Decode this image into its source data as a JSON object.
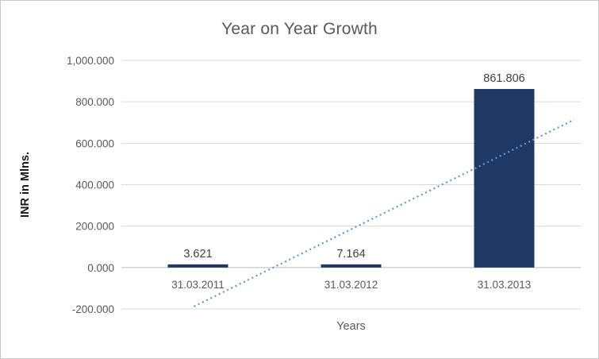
{
  "window": {
    "background": "#FFFFFF",
    "border_color": "#C9C9C9"
  },
  "chart_data": {
    "type": "bar",
    "title": "Year on Year Growth",
    "xlabel": "Years",
    "ylabel": "INR in Mlns.",
    "categories": [
      "31.03.2011",
      "31.03.2012",
      "31.03.2013"
    ],
    "values": [
      3.621,
      7.164,
      861.806
    ],
    "data_labels": [
      "3.621",
      "7.164",
      "861.806"
    ],
    "ylim": [
      -200,
      1000
    ],
    "yticks": [
      {
        "value": -200,
        "label": "-200.000"
      },
      {
        "value": 0,
        "label": "0.000"
      },
      {
        "value": 200,
        "label": "200.000"
      },
      {
        "value": 400,
        "label": "400.000"
      },
      {
        "value": 600,
        "label": "600.000"
      },
      {
        "value": 800,
        "label": "800.000"
      },
      {
        "value": 1000,
        "label": "1,000.000"
      }
    ],
    "grid": true,
    "legend": "none",
    "bar_color": "#1F3864",
    "gridline_color": "#D9D9D9",
    "axis_line_color": "#BFBFBF",
    "title_color": "#595959",
    "tick_label_color": "#595959",
    "data_label_color": "#404040",
    "trendline": {
      "type": "linear",
      "style": "dotted",
      "color": "#5B9BD5",
      "start": {
        "x_frac": 0.158,
        "value": -188
      },
      "end": {
        "x_frac": 0.986,
        "value": 714
      }
    }
  }
}
